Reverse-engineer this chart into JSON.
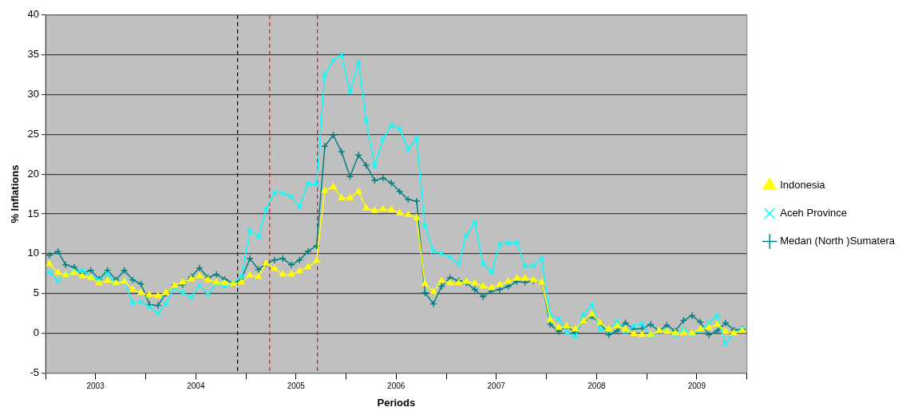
{
  "chart_data": {
    "type": "line",
    "xlabel": "Periods",
    "ylabel": "% Inflations",
    "x": [
      "2003-01-15",
      "2003-02-15",
      "2003-03-15",
      "2003-04-15",
      "2003-05-15",
      "2003-06-15",
      "2003-07-15",
      "2003-08-15",
      "2003-09-15",
      "2003-10-15",
      "2003-11-15",
      "2003-12-15",
      "2004-01-15",
      "2004-02-15",
      "2004-03-15",
      "2004-04-15",
      "2004-05-15",
      "2004-06-15",
      "2004-07-15",
      "2004-08-15",
      "2004-09-15",
      "2004-10-15",
      "2004-11-15",
      "2004-12-15",
      "2005-01-15",
      "2005-02-15",
      "2005-03-15",
      "2005-04-15",
      "2005-05-15",
      "2005-06-15",
      "2005-07-15",
      "2005-08-15",
      "2005-09-15",
      "2005-10-15",
      "2005-11-15",
      "2005-12-15",
      "2006-01-15",
      "2006-02-15",
      "2006-03-15",
      "2006-04-15",
      "2006-05-15",
      "2006-06-15",
      "2006-07-15",
      "2006-08-15",
      "2006-09-15",
      "2006-10-15",
      "2006-11-15",
      "2006-12-15",
      "2007-01-15",
      "2007-02-15",
      "2007-03-15",
      "2007-04-15",
      "2007-05-15",
      "2007-06-15",
      "2007-07-15",
      "2007-08-15",
      "2007-09-15",
      "2007-10-15",
      "2007-11-15",
      "2007-12-15",
      "2008-01-15",
      "2008-02-15",
      "2008-03-15",
      "2008-04-15",
      "2008-05-15",
      "2008-06-15",
      "2008-07-15",
      "2008-08-15",
      "2008-09-15",
      "2008-10-15",
      "2008-11-15",
      "2008-12-15",
      "2009-01-15",
      "2009-02-15",
      "2009-03-15",
      "2009-04-15",
      "2009-05-15",
      "2009-06-15",
      "2009-07-15",
      "2009-08-15",
      "2009-09-15",
      "2009-10-15",
      "2009-11-15",
      "2009-12-15"
    ],
    "series": [
      {
        "name": "Indonesia",
        "color": "#ffff00",
        "marker": "triangle",
        "values": [
          8.7,
          7.6,
          7.3,
          7.6,
          7.2,
          7.0,
          6.3,
          6.6,
          6.3,
          6.5,
          5.5,
          5.1,
          4.8,
          4.7,
          5.1,
          6.0,
          6.4,
          6.8,
          7.2,
          6.7,
          6.4,
          6.3,
          6.2,
          6.4,
          7.3,
          7.1,
          8.8,
          8.1,
          7.4,
          7.4,
          7.8,
          8.3,
          9.1,
          17.9,
          18.4,
          17.0,
          17.0,
          17.8,
          15.7,
          15.4,
          15.6,
          15.5,
          15.1,
          14.9,
          14.5,
          6.2,
          5.2,
          6.6,
          6.3,
          6.3,
          6.5,
          6.3,
          5.9,
          5.7,
          6.1,
          6.5,
          6.9,
          6.9,
          6.7,
          6.4,
          1.7,
          0.7,
          0.9,
          0.5,
          1.5,
          2.4,
          1.3,
          0.5,
          0.9,
          0.5,
          -0.1,
          -0.2,
          -0.2,
          0.3,
          0.2,
          0,
          0,
          0,
          0.5,
          0.7,
          1.1,
          0.2,
          0,
          0.3
        ]
      },
      {
        "name": "Aceh Province",
        "color": "#00ffff",
        "marker": "cross",
        "values": [
          7.7,
          6.6,
          7.4,
          7.7,
          7.9,
          7.2,
          6.7,
          7.5,
          6.2,
          6.5,
          3.8,
          3.9,
          3.3,
          2.5,
          3.7,
          5.7,
          5.1,
          4.5,
          6.0,
          4.9,
          6.3,
          5.9,
          6.3,
          7.1,
          12.9,
          12.1,
          15.6,
          17.7,
          17.6,
          17.2,
          15.9,
          18.8,
          18.7,
          32.5,
          34.3,
          35.0,
          30.3,
          34.1,
          26.7,
          21.0,
          24.4,
          26.1,
          25.7,
          23.1,
          24.5,
          13.5,
          10.3,
          10.0,
          9.6,
          8.7,
          12.3,
          13.9,
          8.7,
          7.7,
          11.2,
          11.3,
          11.4,
          8.4,
          8.5,
          9.4,
          2.2,
          1.8,
          0.1,
          -0.4,
          2.4,
          3.6,
          0.5,
          0.3,
          1.5,
          0.2,
          0.9,
          1.2,
          -0.3,
          0.2,
          0.3,
          -0.2,
          0.4,
          -0.1,
          0.3,
          1.3,
          2.2,
          -1.3,
          0,
          0.6
        ]
      },
      {
        "name": "Medan (North )Sumatera",
        "color": "#008080",
        "marker": "plus",
        "values": [
          9.8,
          10.3,
          8.6,
          8.3,
          7.5,
          7.9,
          6.8,
          7.9,
          6.7,
          7.9,
          6.7,
          6.2,
          3.6,
          3.5,
          5.0,
          6.1,
          6.1,
          7.1,
          8.2,
          7.0,
          7.4,
          6.8,
          6.3,
          6.8,
          9.4,
          8.0,
          8.8,
          9.2,
          9.4,
          8.6,
          9.2,
          10.3,
          11.0,
          23.5,
          24.9,
          22.8,
          19.7,
          22.4,
          21.1,
          19.2,
          19.5,
          18.9,
          17.8,
          16.8,
          16.6,
          5.1,
          3.7,
          5.9,
          7.0,
          6.6,
          6.3,
          5.5,
          4.6,
          5.3,
          5.5,
          5.9,
          6.5,
          6.4,
          6.6,
          6.4,
          1.1,
          0.2,
          0.9,
          0.1,
          1.6,
          2.1,
          1.3,
          -0.2,
          0.3,
          1.3,
          0.5,
          0.6,
          1.1,
          0.3,
          1.0,
          0.3,
          1.6,
          2.2,
          1.4,
          -0.2,
          0.3,
          1.3,
          0.4,
          0.5
        ]
      }
    ],
    "xlim": [
      "2003-01-01",
      "2010-01-01"
    ],
    "xticks": [
      {
        "value": "2003-01-01",
        "label": null
      },
      {
        "value": "2003-07-02",
        "label": "2003"
      },
      {
        "value": "2004-01-01",
        "label": null
      },
      {
        "value": "2004-07-02",
        "label": "2004"
      },
      {
        "value": "2005-01-01",
        "label": null
      },
      {
        "value": "2005-07-02",
        "label": "2005"
      },
      {
        "value": "2006-01-01",
        "label": null
      },
      {
        "value": "2006-07-02",
        "label": "2006"
      },
      {
        "value": "2007-01-01",
        "label": null
      },
      {
        "value": "2007-07-02",
        "label": "2007"
      },
      {
        "value": "2008-01-01",
        "label": null
      },
      {
        "value": "2008-07-02",
        "label": "2008"
      },
      {
        "value": "2009-01-01",
        "label": null
      },
      {
        "value": "2009-07-02",
        "label": "2009"
      },
      {
        "value": "2010-01-01",
        "label": null
      }
    ],
    "ylim": [
      -5,
      40
    ],
    "yticks": [
      -5,
      0,
      5,
      10,
      15,
      20,
      25,
      30,
      35,
      40
    ],
    "ref_lines": [
      {
        "axis": "x",
        "value": "2004-12-01",
        "color": "#000000",
        "line_style": "dashed"
      },
      {
        "axis": "x",
        "value": "2005-03-28",
        "color": "#ff0000",
        "line_style": "dashed"
      },
      {
        "axis": "x",
        "value": "2005-09-18",
        "color": "#ff0000",
        "line_style": "dashed"
      }
    ],
    "grid": "y",
    "legend": "right"
  }
}
